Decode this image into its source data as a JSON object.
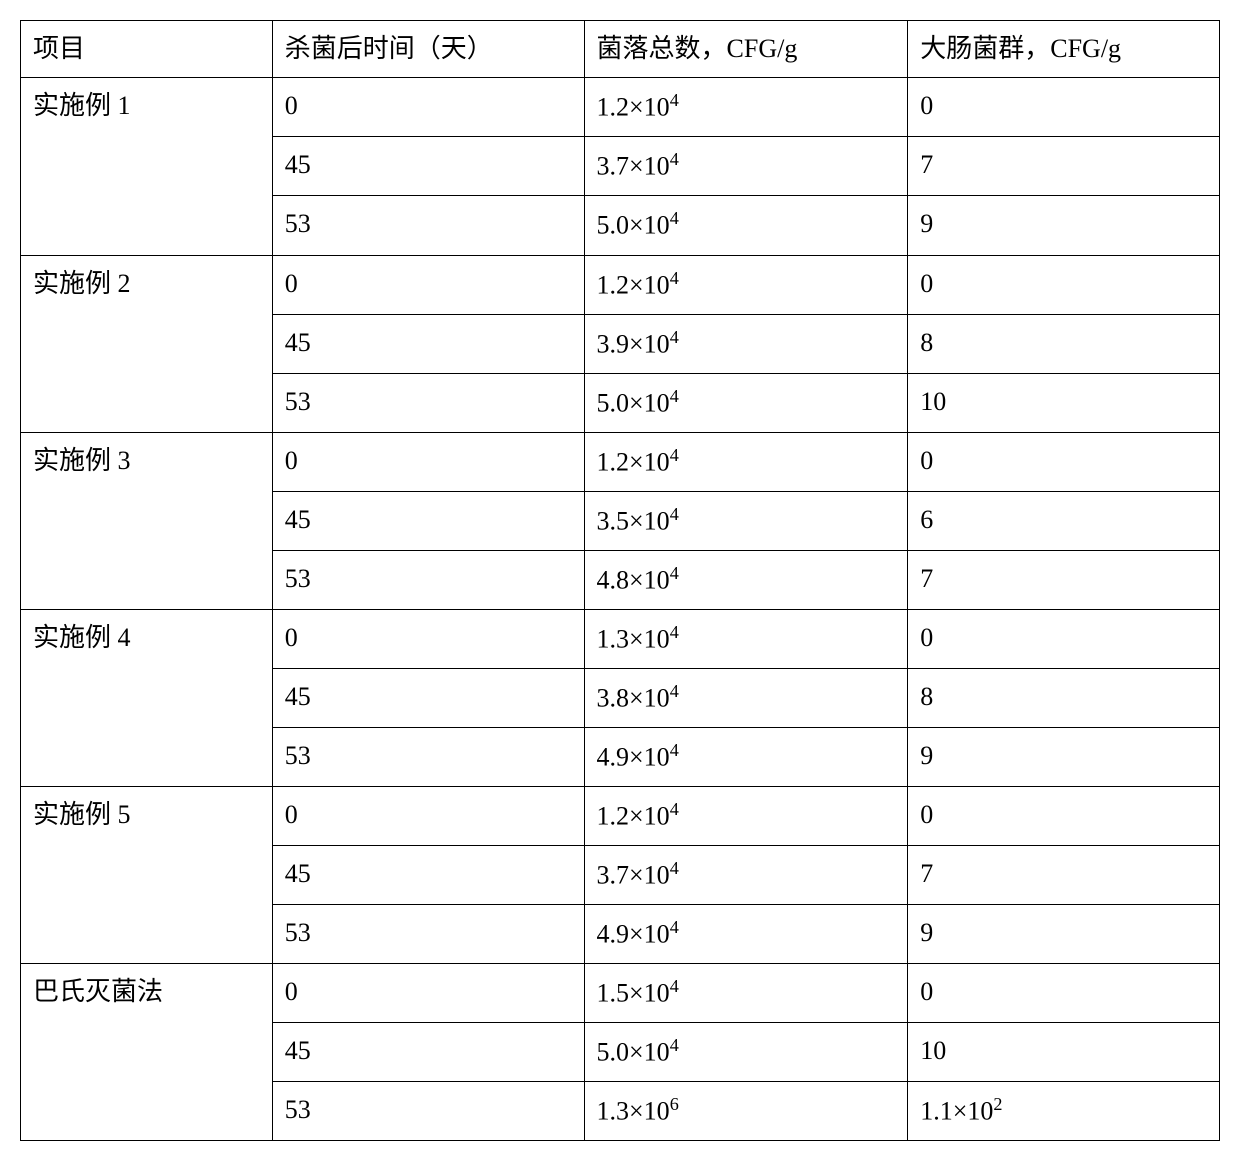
{
  "table": {
    "headers": {
      "project": "项目",
      "time": "杀菌后时间（天）",
      "count": "菌落总数，CFG/g",
      "coliform": "大肠菌群，CFG/g"
    },
    "groups": [
      {
        "name": "实施例 1",
        "rows": [
          {
            "time": "0",
            "count_base": "1.2",
            "count_exp": "4",
            "coliform": "0"
          },
          {
            "time": "45",
            "count_base": "3.7",
            "count_exp": "4",
            "coliform": "7"
          },
          {
            "time": "53",
            "count_base": "5.0",
            "count_exp": "4",
            "coliform": "9"
          }
        ]
      },
      {
        "name": "实施例 2",
        "rows": [
          {
            "time": "0",
            "count_base": "1.2",
            "count_exp": "4",
            "coliform": "0"
          },
          {
            "time": "45",
            "count_base": "3.9",
            "count_exp": "4",
            "coliform": "8"
          },
          {
            "time": "53",
            "count_base": "5.0",
            "count_exp": "4",
            "coliform": "10"
          }
        ]
      },
      {
        "name": "实施例 3",
        "rows": [
          {
            "time": "0",
            "count_base": "1.2",
            "count_exp": "4",
            "coliform": "0"
          },
          {
            "time": "45",
            "count_base": "3.5",
            "count_exp": "4",
            "coliform": "6"
          },
          {
            "time": "53",
            "count_base": "4.8",
            "count_exp": "4",
            "coliform": "7"
          }
        ]
      },
      {
        "name": "实施例 4",
        "rows": [
          {
            "time": "0",
            "count_base": "1.3",
            "count_exp": "4",
            "coliform": "0"
          },
          {
            "time": "45",
            "count_base": "3.8",
            "count_exp": "4",
            "coliform": "8"
          },
          {
            "time": "53",
            "count_base": "4.9",
            "count_exp": "4",
            "coliform": "9"
          }
        ]
      },
      {
        "name": "实施例 5",
        "rows": [
          {
            "time": "0",
            "count_base": "1.2",
            "count_exp": "4",
            "coliform": "0"
          },
          {
            "time": "45",
            "count_base": "3.7",
            "count_exp": "4",
            "coliform": "7"
          },
          {
            "time": "53",
            "count_base": "4.9",
            "count_exp": "4",
            "coliform": "9"
          }
        ]
      },
      {
        "name": "巴氏灭菌法",
        "rows": [
          {
            "time": "0",
            "count_base": "1.5",
            "count_exp": "4",
            "coliform": "0"
          },
          {
            "time": "45",
            "count_base": "5.0",
            "count_exp": "4",
            "coliform": "10"
          },
          {
            "time": "53",
            "count_base": "1.3",
            "count_exp": "6",
            "coliform_base": "1.1",
            "coliform_exp": "2"
          }
        ]
      }
    ]
  }
}
